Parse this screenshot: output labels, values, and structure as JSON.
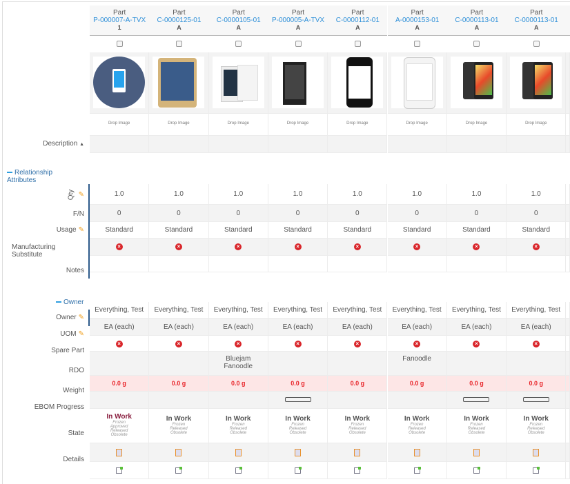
{
  "header_type_label": "Part",
  "drop_image_label": "Drop Image",
  "labels": {
    "description": "Description",
    "relationship_section": "Relationship Attributes",
    "qty": "Qty",
    "fn": "F/N",
    "usage": "Usage",
    "mfg_sub": "Manufacturing Substitute",
    "notes": "Notes",
    "owner_section": "Owner",
    "owner": "Owner",
    "uom": "UOM",
    "spare_part": "Spare Part",
    "rdo": "RDO",
    "weight": "Weight",
    "ebom": "EBOM Progress",
    "state": "State",
    "details": "Details"
  },
  "columns": [
    {
      "number": "P-000007-A-TVX",
      "rev": "1",
      "qty": "1.0",
      "fn": "0",
      "usage": "Standard",
      "owner": "Everything, Test",
      "uom": "EA (each)",
      "rdo": "",
      "weight": "0.0 g",
      "ebom": false,
      "state": "In Work",
      "state_color": "#8a2040",
      "states": [
        "Frozen",
        "Approved",
        "Released",
        "Obsolete"
      ],
      "image": "icon"
    },
    {
      "number": "C-0000125-01",
      "rev": "A",
      "qty": "1.0",
      "fn": "0",
      "usage": "Standard",
      "owner": "Everything, Test",
      "uom": "EA (each)",
      "rdo": "",
      "weight": "0.0 g",
      "ebom": false,
      "state": "In Work",
      "states": [
        "Frozen",
        "Released",
        "Obsolete"
      ],
      "image": "gold"
    },
    {
      "number": "C-0000105-01",
      "rev": "A",
      "qty": "1.0",
      "fn": "0",
      "usage": "Standard",
      "owner": "Everything, Test",
      "uom": "EA (each)",
      "rdo": "Bluejam Fanoodle",
      "weight": "0.0 g",
      "ebom": false,
      "state": "In Work",
      "states": [
        "Frozen",
        "Released",
        "Obsolete"
      ],
      "image": "white"
    },
    {
      "number": "P-000005-A-TVX",
      "rev": "A",
      "qty": "1.0",
      "fn": "0",
      "usage": "Standard",
      "owner": "Everything, Test",
      "uom": "EA (each)",
      "rdo": "",
      "weight": "0.0 g",
      "ebom": true,
      "state": "In Work",
      "states": [
        "Frozen",
        "Released",
        "Obsolete"
      ],
      "image": "black"
    },
    {
      "number": "C-0000112-01",
      "rev": "A",
      "qty": "1.0",
      "fn": "0",
      "usage": "Standard",
      "owner": "Everything, Test",
      "uom": "EA (each)",
      "rdo": "",
      "weight": "0.0 g",
      "ebom": false,
      "state": "In Work",
      "states": [
        "Frozen",
        "Released",
        "Obsolete"
      ],
      "image": "iphone"
    },
    {
      "number": "A-0000153-01",
      "rev": "A",
      "qty": "1.0",
      "fn": "0",
      "usage": "Standard",
      "owner": "Everything, Test",
      "uom": "EA (each)",
      "rdo": "Fanoodle",
      "weight": "0.0 g",
      "ebom": false,
      "state": "In Work",
      "states": [
        "Frozen",
        "Released",
        "Obsolete"
      ],
      "image": "iphonew"
    },
    {
      "number": "C-0000113-01",
      "rev": "A",
      "qty": "1.0",
      "fn": "0",
      "usage": "Standard",
      "owner": "Everything, Test",
      "uom": "EA (each)",
      "rdo": "",
      "weight": "0.0 g",
      "ebom": true,
      "state": "In Work",
      "states": [
        "Frozen",
        "Released",
        "Obsolete"
      ],
      "image": "dual"
    },
    {
      "number": "C-0000113-01",
      "rev": "A",
      "qty": "1.0",
      "fn": "0",
      "usage": "Standard",
      "owner": "Everything, Test",
      "uom": "EA (each)",
      "rdo": "",
      "weight": "0.0 g",
      "ebom": true,
      "state": "In Work",
      "states": [
        "Frozen",
        "Released",
        "Obsolete"
      ],
      "image": "dual"
    }
  ]
}
